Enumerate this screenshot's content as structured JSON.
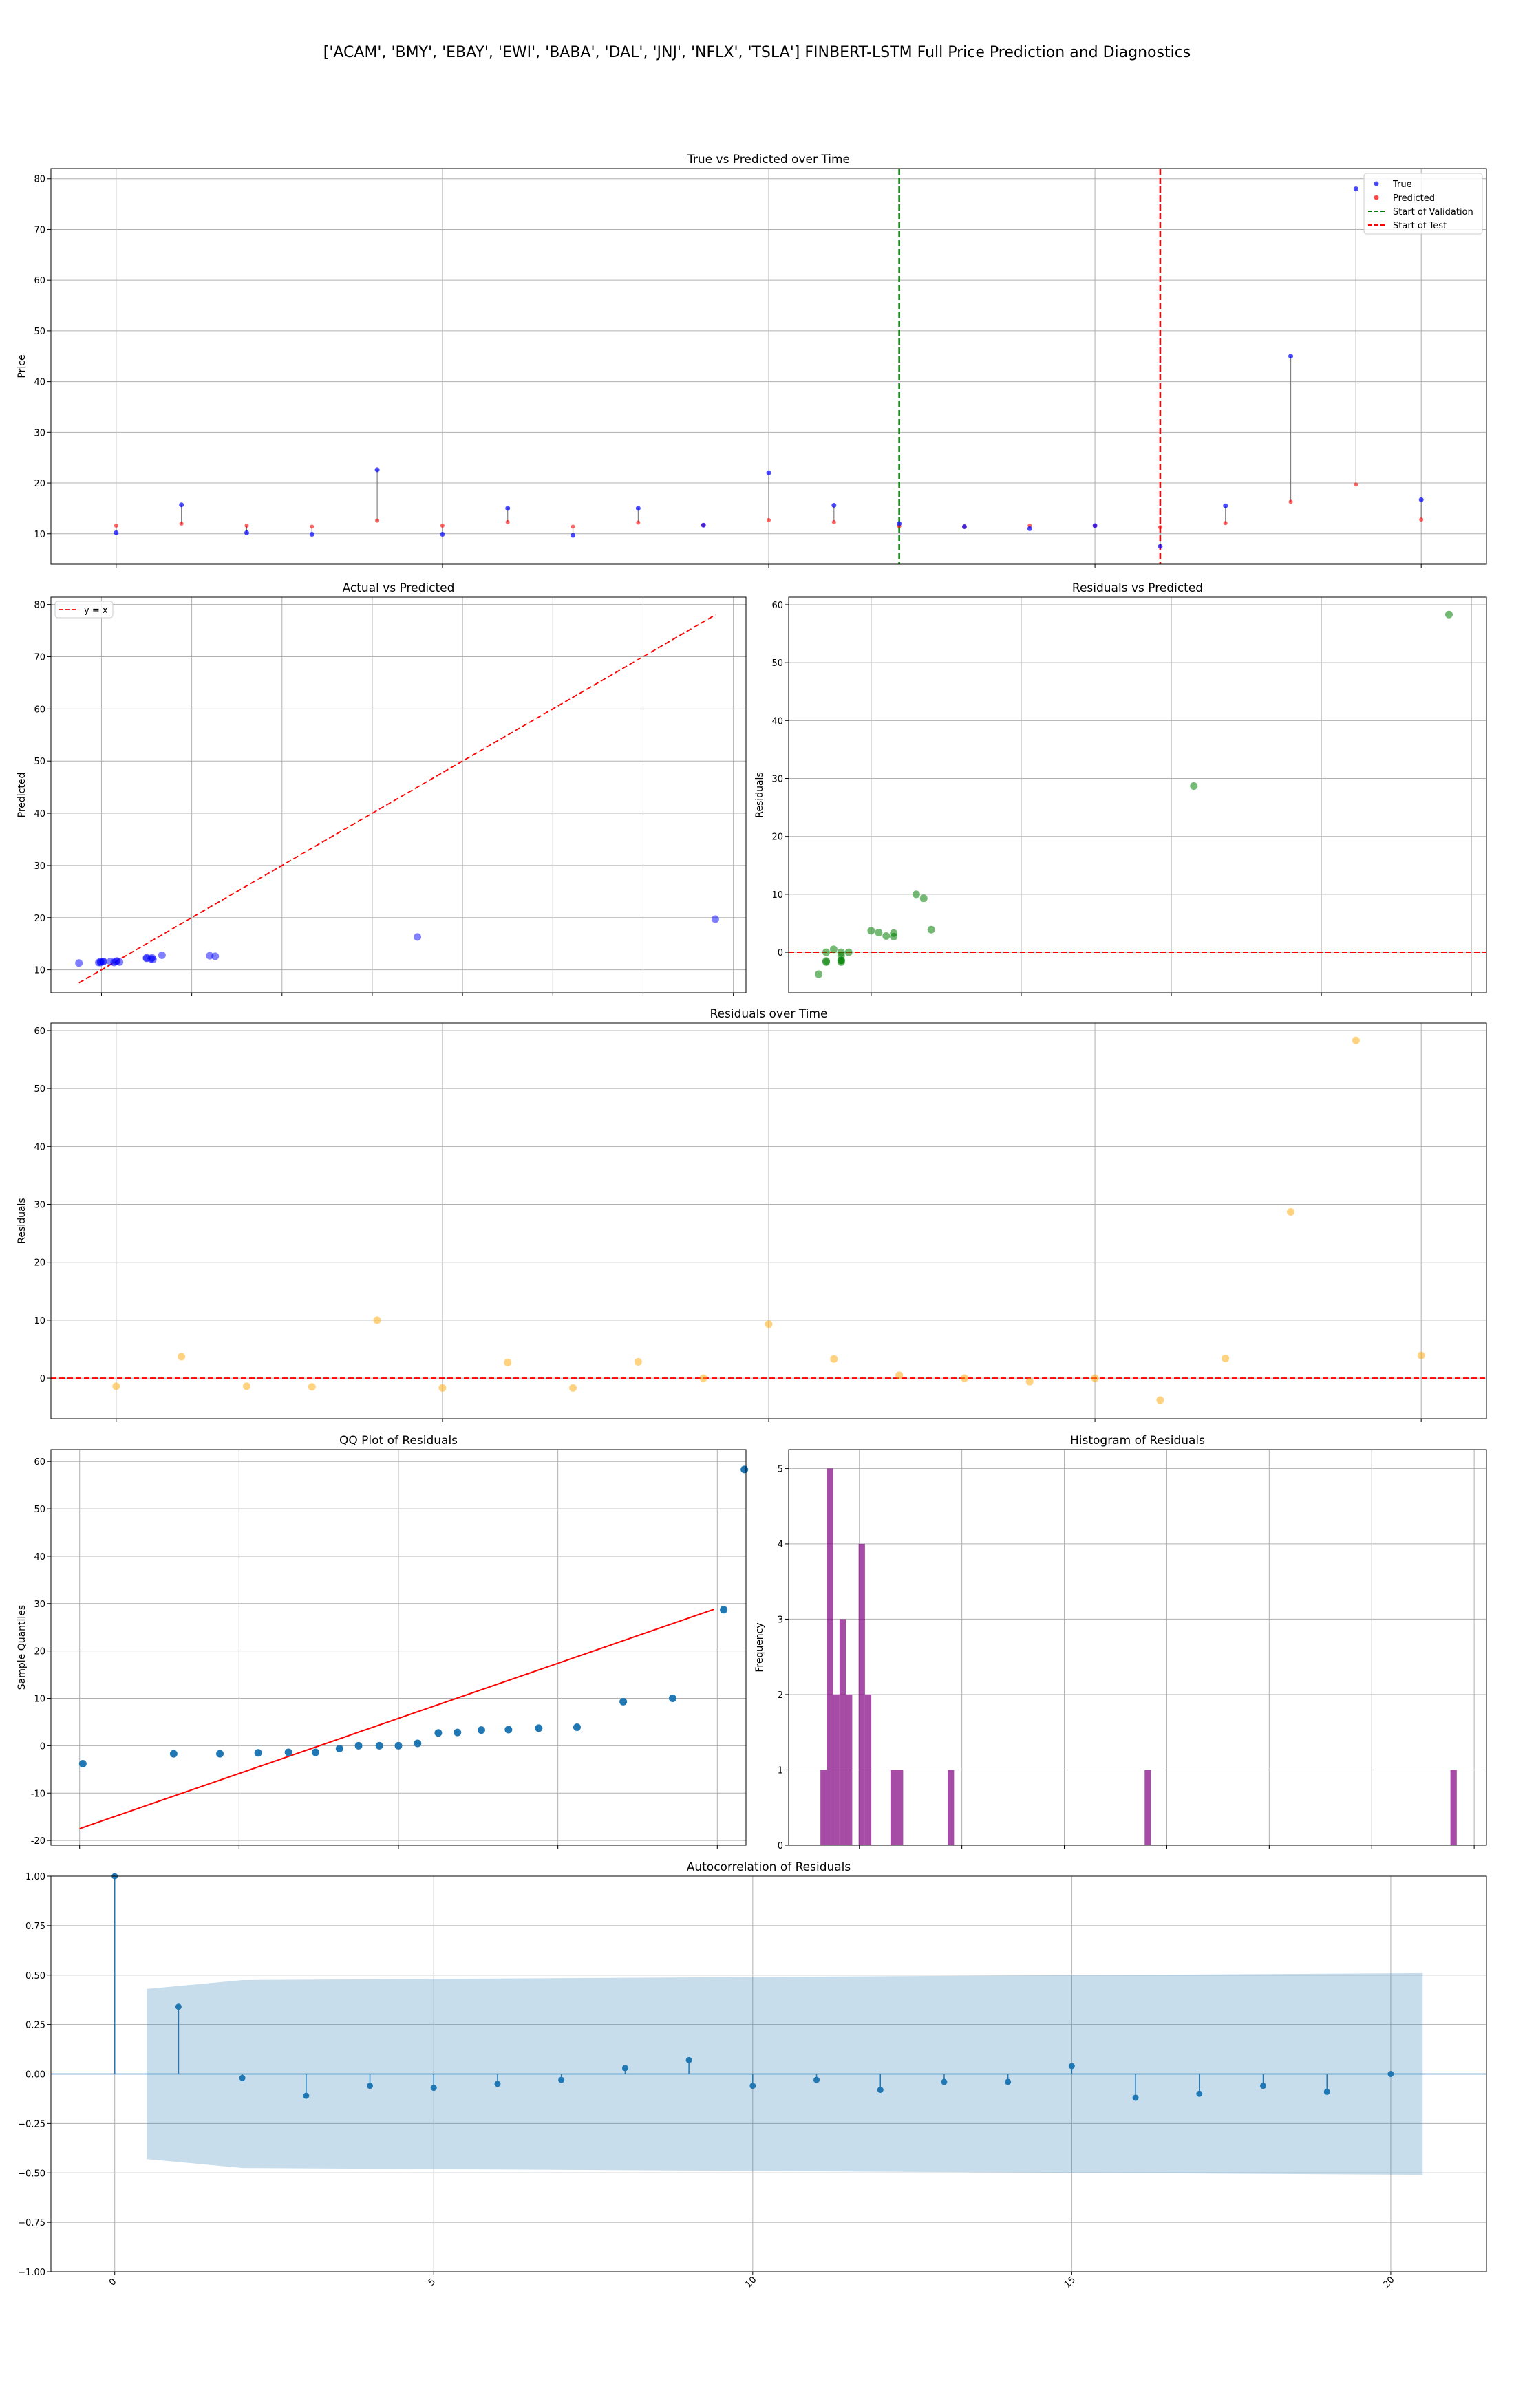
{
  "figure": {
    "title": "['ACAM', 'BMY', 'EBAY', 'EWI', 'BABA', 'DAL', 'JNJ', 'NFLX', 'TSLA'] FINBERT-LSTM Full Price Prediction and Diagnostics"
  },
  "chart_data": [
    {
      "id": "true_vs_pred",
      "type": "scatter",
      "title": "True vs Predicted over Time",
      "xlabel": "",
      "ylabel": "Price",
      "xlim": [
        -1,
        21
      ],
      "ylim": [
        4,
        82
      ],
      "yticks": [
        10,
        20,
        30,
        40,
        50,
        60,
        70,
        80
      ],
      "xticks": [
        0,
        5,
        10,
        15,
        20
      ],
      "x": [
        0,
        1,
        2,
        3,
        4,
        5,
        6,
        7,
        8,
        9,
        10,
        11,
        12,
        13,
        14,
        15,
        16,
        17,
        18,
        19,
        20
      ],
      "series": [
        {
          "name": "True",
          "color": "#0000ff",
          "values": [
            10.2,
            15.7,
            10.2,
            9.9,
            22.6,
            9.9,
            15.0,
            9.7,
            15.0,
            11.7,
            22.0,
            15.6,
            12.0,
            11.4,
            11.0,
            11.6,
            7.5,
            15.5,
            45.0,
            78.0,
            16.7
          ]
        },
        {
          "name": "Predicted",
          "color": "#ff0000",
          "values": [
            11.6,
            12.0,
            11.6,
            11.4,
            12.6,
            11.6,
            12.3,
            11.4,
            12.2,
            11.7,
            12.7,
            12.3,
            11.5,
            11.4,
            11.6,
            11.6,
            11.3,
            12.1,
            16.3,
            19.7,
            12.8
          ]
        }
      ],
      "vlines": [
        {
          "name": "Start of Validation",
          "x": 12,
          "color": "#008000"
        },
        {
          "name": "Start of Test",
          "x": 16,
          "color": "#ff0000"
        }
      ],
      "legend": "top-right",
      "grid": true
    },
    {
      "id": "actual_vs_pred",
      "type": "scatter",
      "title": "Actual vs Predicted",
      "xlabel": "",
      "ylabel": "Predicted",
      "xlim": [
        4.4,
        81.4
      ],
      "ylim": [
        5.6,
        81.4
      ],
      "yticks": [
        10,
        20,
        30,
        40,
        50,
        60,
        70,
        80
      ],
      "xticks": [
        10,
        20,
        30,
        40,
        50,
        60,
        70,
        80
      ],
      "line": {
        "name": "y = x",
        "from": [
          7.5,
          7.5
        ],
        "to": [
          78,
          78
        ],
        "color": "#ff0000"
      },
      "color": "#0000ff",
      "points": [
        [
          10.2,
          11.6
        ],
        [
          15.7,
          12.0
        ],
        [
          10.2,
          11.6
        ],
        [
          9.9,
          11.4
        ],
        [
          22.6,
          12.6
        ],
        [
          9.9,
          11.6
        ],
        [
          15.0,
          12.3
        ],
        [
          9.7,
          11.4
        ],
        [
          15.0,
          12.2
        ],
        [
          11.7,
          11.7
        ],
        [
          22.0,
          12.7
        ],
        [
          15.6,
          12.3
        ],
        [
          12.0,
          11.5
        ],
        [
          11.4,
          11.4
        ],
        [
          11.0,
          11.6
        ],
        [
          11.6,
          11.6
        ],
        [
          7.5,
          11.3
        ],
        [
          15.5,
          12.1
        ],
        [
          45.0,
          16.3
        ],
        [
          78.0,
          19.7
        ],
        [
          16.7,
          12.8
        ]
      ],
      "legend": "top-left",
      "grid": true
    },
    {
      "id": "resid_vs_pred",
      "type": "scatter",
      "title": "Residuals vs Predicted",
      "xlabel": "",
      "ylabel": "Residuals",
      "xlim": [
        10.9,
        20.2
      ],
      "ylim": [
        -7.0,
        61.3
      ],
      "yticks": [
        0,
        10,
        20,
        30,
        40,
        50,
        60
      ],
      "xticks": [
        12,
        14,
        16,
        18,
        20
      ],
      "hline": {
        "y": 0,
        "color": "#ff0000"
      },
      "color": "#008000",
      "points": [
        [
          11.6,
          -1.4
        ],
        [
          12.0,
          3.7
        ],
        [
          11.6,
          -1.4
        ],
        [
          11.4,
          -1.5
        ],
        [
          12.6,
          10.0
        ],
        [
          11.6,
          -1.7
        ],
        [
          12.3,
          2.7
        ],
        [
          11.4,
          -1.7
        ],
        [
          12.2,
          2.8
        ],
        [
          11.7,
          0.0
        ],
        [
          12.7,
          9.3
        ],
        [
          12.3,
          3.3
        ],
        [
          11.5,
          0.5
        ],
        [
          11.4,
          0.0
        ],
        [
          11.6,
          -0.6
        ],
        [
          11.6,
          0.0
        ],
        [
          11.3,
          -3.8
        ],
        [
          12.1,
          3.4
        ],
        [
          16.3,
          28.7
        ],
        [
          19.7,
          58.3
        ],
        [
          12.8,
          3.9
        ]
      ],
      "grid": true
    },
    {
      "id": "resid_over_time",
      "type": "scatter",
      "title": "Residuals over Time",
      "xlabel": "",
      "ylabel": "Residuals",
      "xlim": [
        -1,
        21
      ],
      "ylim": [
        -7.0,
        61.3
      ],
      "yticks": [
        0,
        10,
        20,
        30,
        40,
        50,
        60
      ],
      "xticks": [
        0,
        5,
        10,
        15,
        20
      ],
      "hline": {
        "y": 0,
        "color": "#ff0000"
      },
      "color": "#ffa500",
      "x": [
        0,
        1,
        2,
        3,
        4,
        5,
        6,
        7,
        8,
        9,
        10,
        11,
        12,
        13,
        14,
        15,
        16,
        17,
        18,
        19,
        20
      ],
      "values": [
        -1.4,
        3.7,
        -1.4,
        -1.5,
        10.0,
        -1.7,
        2.7,
        -1.7,
        2.8,
        0.0,
        9.3,
        3.3,
        0.5,
        0.0,
        -0.6,
        0.0,
        -3.8,
        3.4,
        28.7,
        58.3,
        3.9
      ],
      "grid": true
    },
    {
      "id": "qq_plot",
      "type": "scatter",
      "title": "QQ Plot of Residuals",
      "xlabel": "",
      "ylabel": "Sample Quantiles",
      "xlim": [
        -2.18,
        2.18
      ],
      "ylim": [
        -21,
        62.5
      ],
      "yticks": [
        -20,
        -10,
        0,
        10,
        20,
        30,
        40,
        50,
        60
      ],
      "xticks": [
        -2,
        -1,
        0,
        1,
        2
      ],
      "line": {
        "from": [
          -2.0,
          -17.5
        ],
        "to": [
          1.98,
          28.8
        ],
        "color": "#ff0000"
      },
      "color": "#1f77b4",
      "points": [
        [
          -1.98,
          -3.8
        ],
        [
          -1.41,
          -1.7
        ],
        [
          -1.12,
          -1.7
        ],
        [
          -0.88,
          -1.5
        ],
        [
          -0.69,
          -1.4
        ],
        [
          -0.52,
          -1.4
        ],
        [
          -0.37,
          -0.6
        ],
        [
          -0.25,
          0.0
        ],
        [
          -0.12,
          0.0
        ],
        [
          0.0,
          0.0
        ],
        [
          0.12,
          0.5
        ],
        [
          0.25,
          2.7
        ],
        [
          0.37,
          2.8
        ],
        [
          0.52,
          3.3
        ],
        [
          0.69,
          3.4
        ],
        [
          0.88,
          3.7
        ],
        [
          1.12,
          3.9
        ],
        [
          1.41,
          9.3
        ],
        [
          1.72,
          10.0
        ],
        [
          2.04,
          28.7
        ],
        [
          2.17,
          58.3
        ]
      ],
      "grid": true
    },
    {
      "id": "histogram",
      "type": "bar",
      "title": "Histogram of Residuals",
      "xlabel": "",
      "ylabel": "Frequency",
      "xlim": [
        -6.9,
        61.2
      ],
      "ylim": [
        0,
        5.25
      ],
      "yticks": [
        0,
        1,
        2,
        3,
        4,
        5
      ],
      "xticks": [
        0,
        10,
        20,
        30,
        40,
        50,
        60
      ],
      "color": "#800080",
      "bin_width": 0.621,
      "bins_start": [
        -3.8,
        -3.179,
        -2.558,
        -1.937,
        -1.316,
        -0.695,
        -0.074,
        0.547,
        1.168,
        1.789,
        2.41,
        3.031,
        3.652,
        4.273,
        4.894,
        8.62,
        9.241,
        27.84,
        57.68
      ],
      "values": [
        1,
        5,
        2,
        3,
        2,
        0,
        4,
        2,
        0,
        0,
        0,
        1,
        1,
        0,
        0,
        1,
        0,
        1,
        1
      ],
      "grid": true
    },
    {
      "id": "acf",
      "type": "stem",
      "title": "Autocorrelation of Residuals",
      "xlabel": "",
      "ylabel": "",
      "xlim": [
        -1,
        21.5
      ],
      "ylim": [
        -1.0,
        1.0
      ],
      "yticks": [
        -1.0,
        -0.75,
        -0.5,
        -0.25,
        0.0,
        0.25,
        0.5,
        0.75,
        1.0
      ],
      "ytick_labels": [
        "−1.00",
        "−0.75",
        "−0.50",
        "−0.25",
        "0.00",
        "0.25",
        "0.50",
        "0.75",
        "1.00"
      ],
      "xticks": [
        0,
        5,
        10,
        15,
        20
      ],
      "color": "#1f77b4",
      "lags": [
        0,
        1,
        2,
        3,
        4,
        5,
        6,
        7,
        8,
        9,
        10,
        11,
        12,
        13,
        14,
        15,
        16,
        17,
        18,
        19,
        20
      ],
      "values": [
        1.0,
        0.34,
        -0.02,
        -0.11,
        -0.06,
        -0.07,
        -0.05,
        -0.03,
        0.03,
        0.07,
        -0.06,
        -0.03,
        -0.08,
        -0.04,
        -0.04,
        0.04,
        -0.12,
        -0.1,
        -0.06,
        -0.09,
        0.0
      ],
      "confint_x": [
        0.5,
        2,
        20.5
      ],
      "confint_upper": [
        0.43,
        0.475,
        0.51
      ],
      "grid": true
    }
  ]
}
